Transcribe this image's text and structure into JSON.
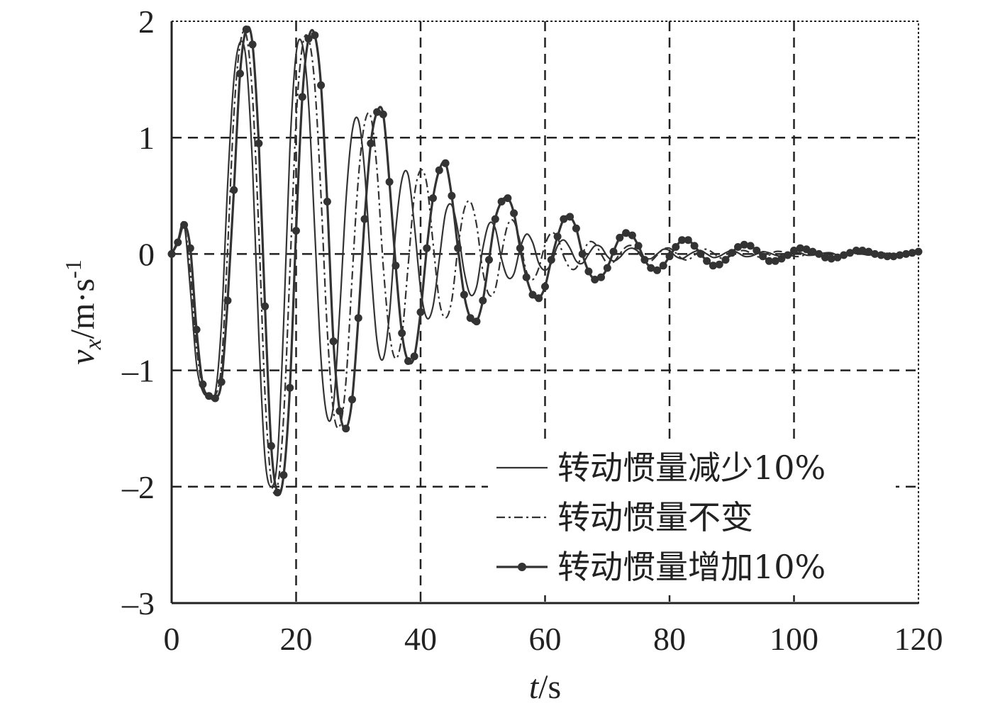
{
  "chart_data": {
    "type": "line",
    "title": "",
    "xlabel": {
      "italic": "t",
      "rest": "/s"
    },
    "ylabel": {
      "italic": "v",
      "sub": "x",
      "rest": "/m·s",
      "sup": "-1"
    },
    "xlim": [
      0,
      120
    ],
    "ylim": [
      -3,
      2
    ],
    "x_ticks": [
      0,
      20,
      40,
      60,
      80,
      100,
      120
    ],
    "x_tick_labels": [
      "0",
      "20",
      "40",
      "60",
      "80",
      "100",
      "120"
    ],
    "y_ticks": [
      2,
      1,
      0,
      -1,
      -2,
      -3
    ],
    "y_tick_labels": [
      "2",
      "1",
      "0",
      "–1",
      "–2",
      "–3"
    ],
    "grid": true,
    "grid_style": "dashed",
    "legend_position": "bottom-right",
    "x": [
      0,
      1,
      2,
      3,
      4,
      5,
      6,
      7,
      8,
      9,
      10,
      11,
      12,
      13,
      14,
      15,
      16,
      17,
      18,
      19,
      20,
      21,
      22,
      23,
      24,
      25,
      26,
      27,
      28,
      29,
      30,
      31,
      32,
      33,
      34,
      35,
      36,
      37,
      38,
      39,
      40,
      41,
      42,
      43,
      44,
      45,
      46,
      47,
      48,
      49,
      50,
      51,
      52,
      53,
      54,
      55,
      56,
      57,
      58,
      59,
      60,
      61,
      62,
      63,
      64,
      65,
      66,
      67,
      68,
      69,
      70,
      71,
      72,
      73,
      74,
      75,
      76,
      77,
      78,
      79,
      80,
      81,
      82,
      83,
      84,
      85,
      86,
      87,
      88,
      89,
      90,
      91,
      92,
      93,
      94,
      95,
      96,
      97,
      98,
      99,
      100,
      101,
      102,
      103,
      104,
      105,
      106,
      107,
      108,
      109,
      110,
      111,
      112,
      113,
      114,
      115,
      116,
      117,
      118,
      119,
      120
    ],
    "series": [
      {
        "name": "转动惯量减少10%",
        "style": "solid",
        "values": [
          0,
          0.12,
          0.26,
          -0.3,
          -0.95,
          -1.18,
          -1.22,
          -1.2,
          -0.6,
          0.6,
          1.5,
          1.82,
          1.65,
          0.75,
          -0.7,
          -1.75,
          -2.0,
          -1.75,
          -0.6,
          0.9,
          1.72,
          1.8,
          1.3,
          0.2,
          -0.9,
          -1.4,
          -1.3,
          -0.5,
          0.45,
          1.05,
          1.15,
          0.72,
          -0.1,
          -0.75,
          -0.9,
          -0.52,
          0.2,
          0.64,
          0.68,
          0.25,
          -0.3,
          -0.55,
          -0.45,
          -0.05,
          0.35,
          0.42,
          0.2,
          -0.15,
          -0.35,
          -0.28,
          0.05,
          0.26,
          0.22,
          -0.04,
          -0.2,
          -0.17,
          0.05,
          0.17,
          0.1,
          -0.08,
          -0.14,
          -0.08,
          0.07,
          0.12,
          0.05,
          -0.06,
          -0.08,
          0.0,
          0.07,
          0.06,
          -0.02,
          -0.06,
          -0.03,
          0.03,
          0.05,
          0.02,
          -0.03,
          -0.04,
          0.0,
          0.04,
          0.03,
          -0.02,
          -0.04,
          -0.01,
          0.02,
          0.03,
          0.0,
          -0.03,
          -0.02,
          0.01,
          0.03,
          0.01,
          -0.02,
          -0.02,
          0.0,
          0.02,
          0.01,
          -0.01,
          -0.02,
          0.0,
          0.01,
          0.01,
          -0.01,
          -0.01,
          0.0,
          0.01,
          0.01,
          -0.01,
          -0.01,
          0.0,
          0.01,
          0.0,
          -0.01,
          0.0,
          0.0,
          0.0,
          0.0,
          0.0,
          0.0,
          0.0,
          0.0
        ]
      },
      {
        "name": "转动惯量不变",
        "style": "dashdot",
        "values": [
          0,
          0.1,
          0.24,
          -0.15,
          -0.8,
          -1.15,
          -1.22,
          -1.22,
          -0.95,
          0.05,
          1.2,
          1.8,
          1.88,
          1.35,
          0.2,
          -1.2,
          -1.95,
          -2.0,
          -1.4,
          -0.15,
          1.15,
          1.78,
          1.85,
          1.45,
          0.5,
          -0.65,
          -1.35,
          -1.48,
          -1.1,
          -0.2,
          0.65,
          1.12,
          1.18,
          0.72,
          -0.1,
          -0.68,
          -0.9,
          -0.7,
          -0.1,
          0.5,
          0.72,
          0.6,
          0.1,
          -0.4,
          -0.55,
          -0.4,
          0.05,
          0.38,
          0.45,
          0.25,
          -0.15,
          -0.35,
          -0.3,
          0.0,
          0.25,
          0.28,
          0.1,
          -0.15,
          -0.22,
          -0.12,
          0.08,
          0.18,
          0.14,
          -0.02,
          -0.12,
          -0.12,
          0.0,
          0.1,
          0.09,
          0.0,
          -0.08,
          -0.07,
          0.0,
          0.06,
          0.07,
          0.01,
          -0.05,
          -0.06,
          -0.01,
          0.04,
          0.05,
          0.01,
          -0.04,
          -0.05,
          -0.01,
          0.03,
          0.04,
          0.01,
          -0.03,
          -0.04,
          -0.01,
          0.02,
          0.03,
          0.01,
          -0.02,
          -0.03,
          -0.01,
          0.02,
          0.02,
          0.0,
          -0.02,
          -0.02,
          0.0,
          0.02,
          0.02,
          0.0,
          -0.01,
          -0.01,
          0.0,
          0.01,
          0.01,
          0.0,
          -0.01,
          -0.01,
          0.0,
          0.01,
          0.0,
          0.0,
          0.0,
          0.0,
          0.0
        ]
      },
      {
        "name": "转动惯量增加10%",
        "style": "solid-marker",
        "values": [
          0,
          0.1,
          0.25,
          0.05,
          -0.65,
          -1.12,
          -1.22,
          -1.24,
          -1.1,
          -0.4,
          0.55,
          1.55,
          1.93,
          1.8,
          0.95,
          -0.45,
          -1.65,
          -2.05,
          -1.9,
          -1.15,
          0.2,
          1.35,
          1.85,
          1.88,
          1.45,
          0.45,
          -0.75,
          -1.35,
          -1.5,
          -1.25,
          -0.55,
          0.3,
          0.95,
          1.22,
          1.2,
          0.62,
          -0.1,
          -0.68,
          -0.92,
          -0.88,
          -0.5,
          0.05,
          0.48,
          0.72,
          0.78,
          0.5,
          0.05,
          -0.35,
          -0.55,
          -0.58,
          -0.4,
          -0.05,
          0.3,
          0.45,
          0.48,
          0.35,
          0.05,
          -0.2,
          -0.35,
          -0.38,
          -0.28,
          -0.05,
          0.15,
          0.3,
          0.32,
          0.22,
          0.0,
          -0.15,
          -0.22,
          -0.2,
          -0.12,
          0.02,
          0.14,
          0.18,
          0.16,
          0.07,
          -0.05,
          -0.12,
          -0.14,
          -0.1,
          -0.02,
          0.06,
          0.12,
          0.12,
          0.07,
          0.0,
          -0.06,
          -0.1,
          -0.09,
          -0.05,
          0.01,
          0.06,
          0.08,
          0.07,
          0.03,
          -0.02,
          -0.06,
          -0.06,
          -0.04,
          -0.01,
          0.03,
          0.05,
          0.04,
          0.02,
          0.0,
          -0.03,
          -0.04,
          -0.03,
          -0.01,
          0.01,
          0.03,
          0.03,
          0.02,
          0.0,
          -0.01,
          -0.02,
          -0.02,
          -0.01,
          0.0,
          0.01,
          0.02
        ]
      }
    ]
  }
}
